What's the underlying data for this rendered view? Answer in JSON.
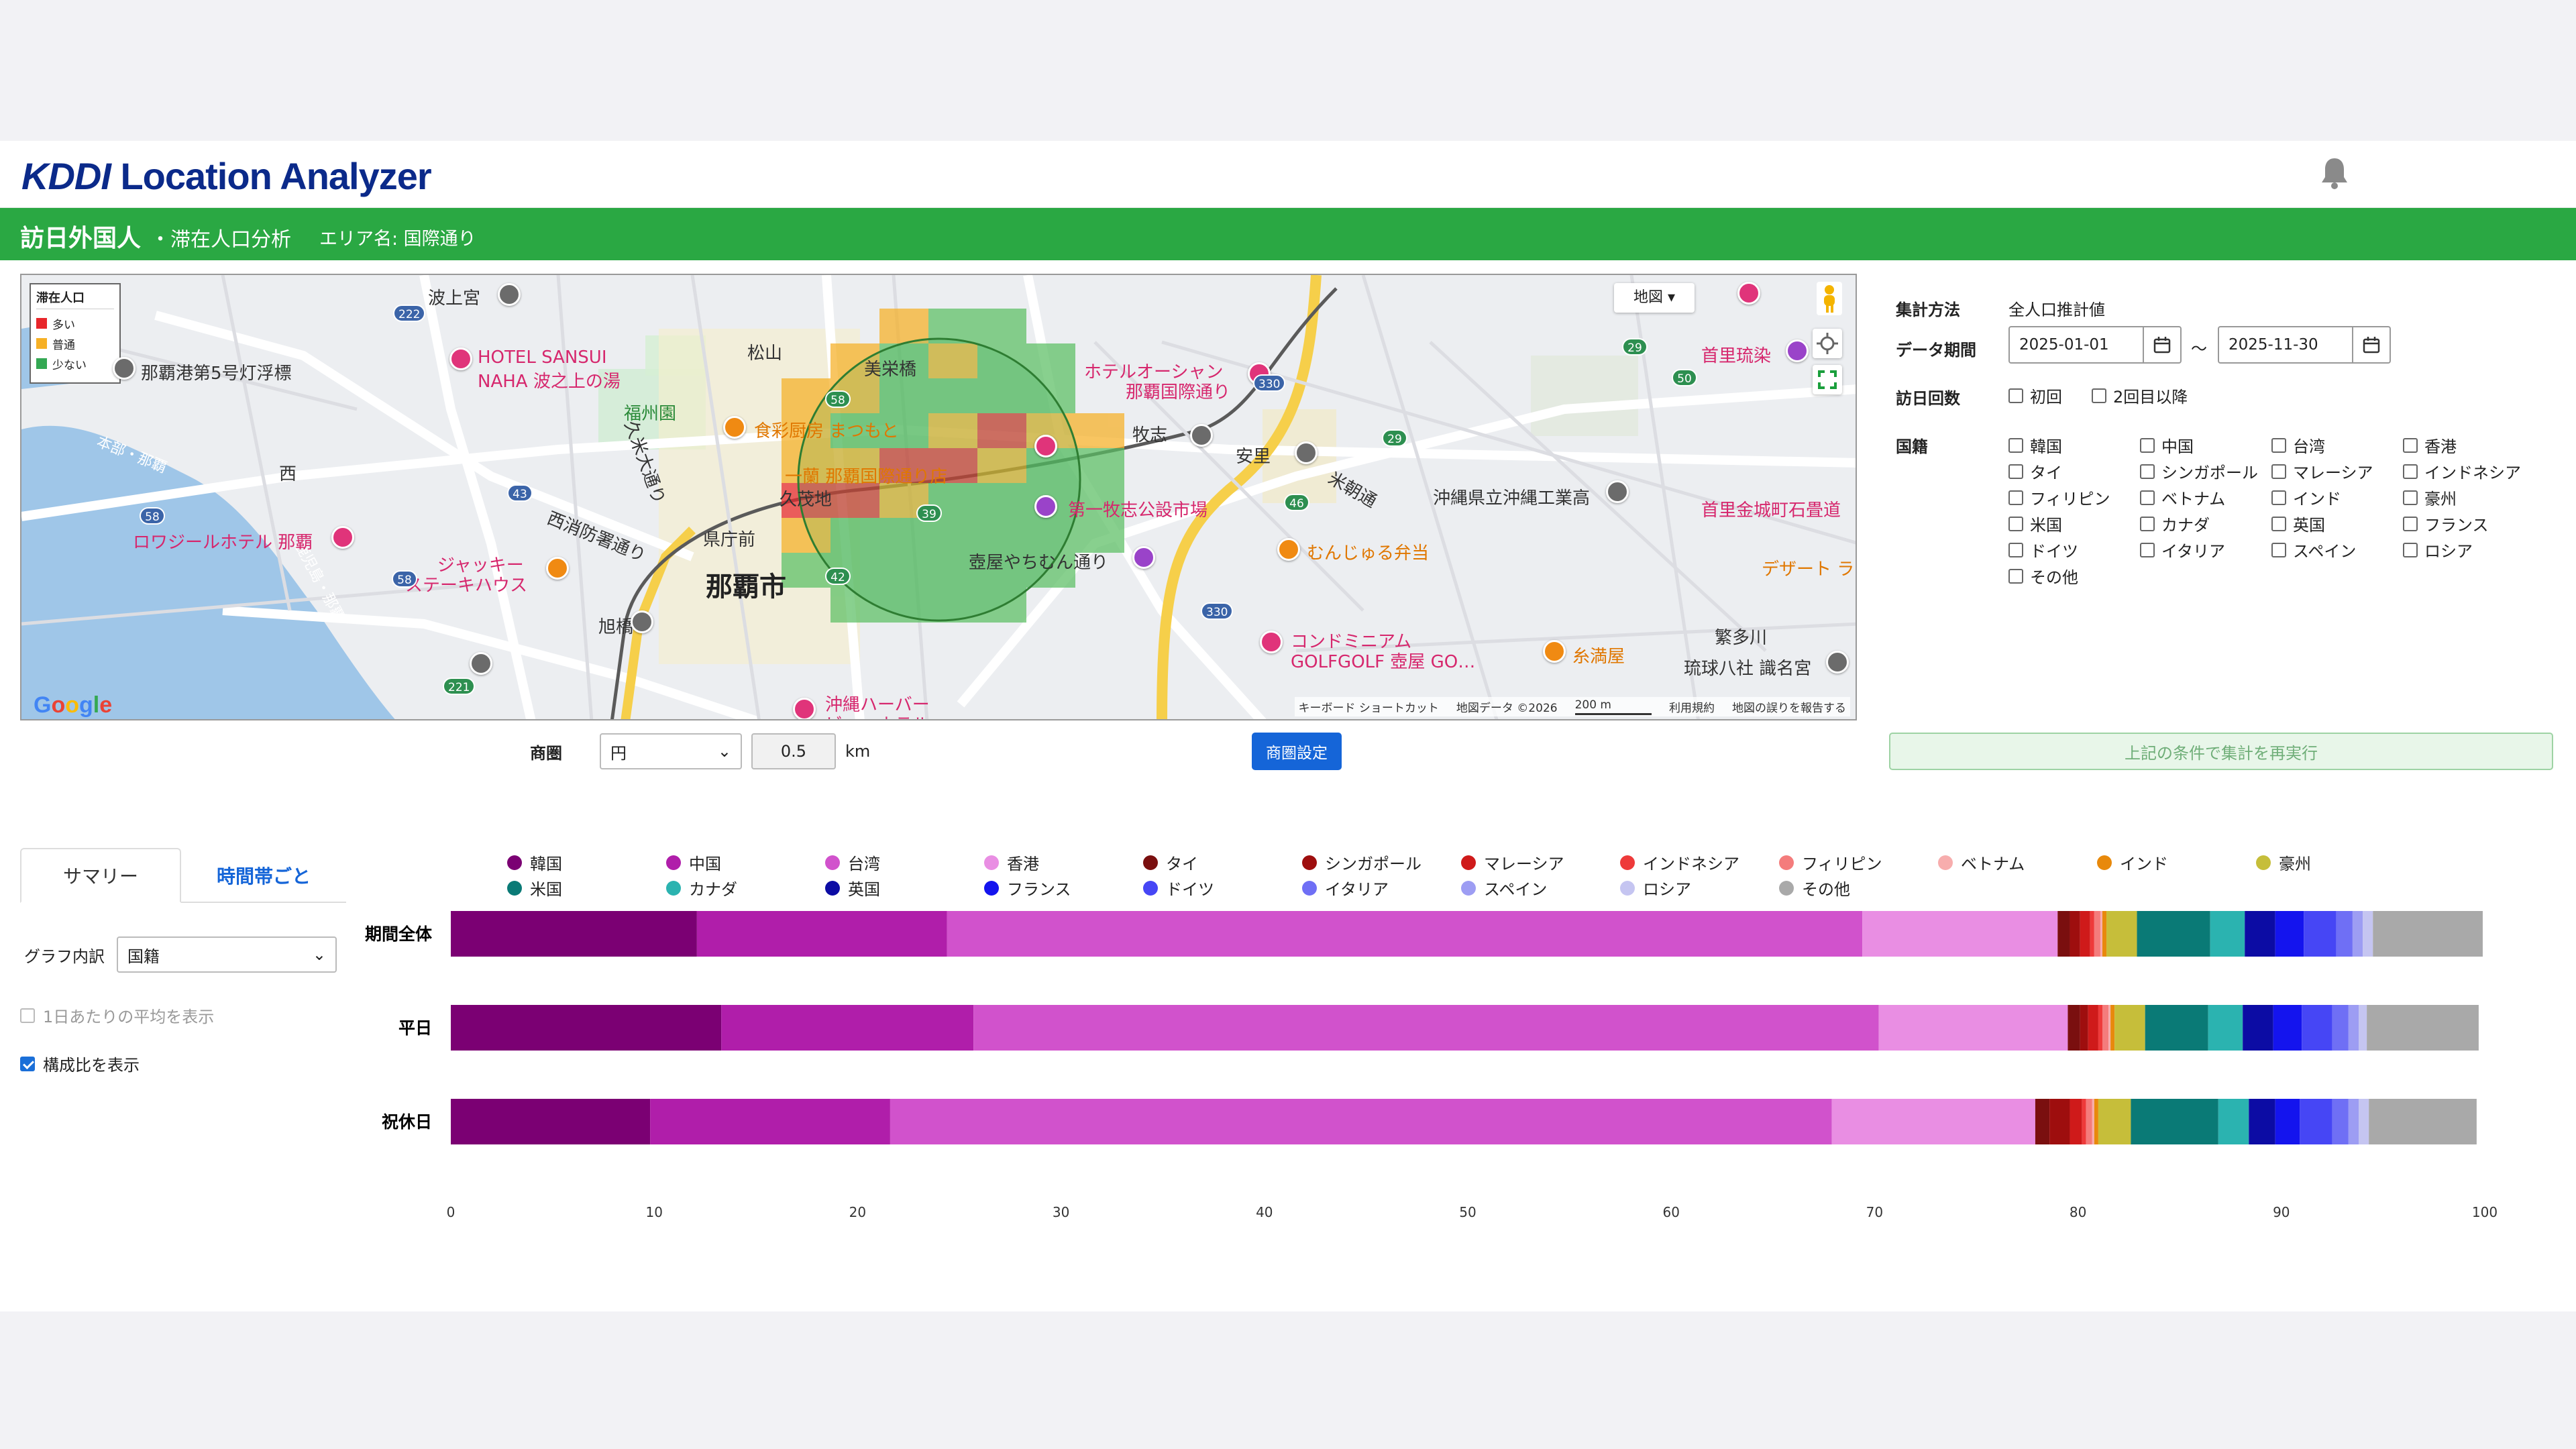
{
  "header": {
    "logo_kddi": "KDDI",
    "logo_rest": " Location Analyzer"
  },
  "titlebar": {
    "title": "訪日外国人",
    "subtitle": "・滞在人口分析",
    "area_label": "エリア名: 国際通り"
  },
  "map": {
    "legend": {
      "title": "滞在人口",
      "items": [
        {
          "label": "多い",
          "color": "#e8262b"
        },
        {
          "label": "普通",
          "color": "#f6b025"
        },
        {
          "label": "少ない",
          "color": "#34a853"
        }
      ]
    },
    "map_type": "地図",
    "labels": {
      "naminoue": "波上宮",
      "hotel_sansui_1": "HOTEL SANSUI",
      "hotel_sansui_2": "NAHA 波之上の湯",
      "lighthouse": "那覇港第5号灯浮標",
      "fukushuen": "福州園",
      "matsuyama": "松山",
      "bijobashi": "美栄橋",
      "restaurant": "食彩厨房 まつもと",
      "ichiran": "一蘭 那覇国際通り店",
      "kubochi": "久茂地",
      "hotel_ocean_1": "ホテルオーシャン",
      "hotel_ocean_2": "那覇国際通り",
      "makishi": "牧志",
      "asato": "安里",
      "daiichi_makishi": "第一牧志公設市場",
      "tsuboya": "壺屋やちむん通り",
      "kumoji": "県庁前",
      "naha_city": "那覇市",
      "nishi": "西",
      "route_hongu": "本部・那覇",
      "route_kagoshima": "鹿児島・那覇",
      "royal_hotel": "ロワジールホテル 那覇",
      "jackey_1": "ジャッキー",
      "jackey_2": "ステーキハウス",
      "nishi_fire": "西消防署通り",
      "kume": "久米大通り",
      "asahibashi": "旭橋",
      "okinawa_hotel_1": "沖縄ハーバー",
      "okinawa_hotel_2": "ビューホテル",
      "munjuru": "むんじゅる弁当",
      "kogyo": "沖縄県立沖縄工業高",
      "shurijo": "首里琉染",
      "ishidatami": "首里金城町石畳道",
      "condo_1": "コンドミニアム",
      "condo_2": "GOLFGOLF 壺屋 GO…",
      "itomanya": "糸満屋",
      "shigejo": "繁多川",
      "ryukyu_hachi": "琉球八社 識名宮",
      "yogimachi": "米朝通",
      "design": "デザート ラ",
      "shimizu": "牧志",
      "route_330": "330",
      "route_58": "58",
      "route_42": "42",
      "route_43": "43",
      "route_29": "29",
      "route_50": "50",
      "route_46": "46",
      "route_222": "222",
      "route_39": "39",
      "route_221": "221"
    },
    "google": "Google",
    "attribution": [
      "キーボード ショートカット",
      "地図データ ©2026",
      "200 m",
      "利用規約",
      "地図の誤りを報告する"
    ]
  },
  "area_control": {
    "label": "商圏",
    "shape": "円",
    "radius": "0.5",
    "unit": "km",
    "set_button": "商圏設定"
  },
  "settings": {
    "method_label": "集計方法",
    "method_value": "全人口推計値",
    "period_label": "データ期間",
    "start": "2025-01-01",
    "sep": "〜",
    "end": "2025-11-30",
    "visits_label": "訪日回数",
    "visits": [
      {
        "label": "初回",
        "checked": false
      },
      {
        "label": "2回目以降",
        "checked": false
      }
    ],
    "nation_label": "国籍",
    "nations": [
      {
        "label": "韓国"
      },
      {
        "label": "中国"
      },
      {
        "label": "台湾"
      },
      {
        "label": "香港"
      },
      {
        "label": "タイ"
      },
      {
        "label": "シンガポール"
      },
      {
        "label": "マレーシア"
      },
      {
        "label": "インドネシア"
      },
      {
        "label": "フィリピン"
      },
      {
        "label": "ベトナム"
      },
      {
        "label": "インド"
      },
      {
        "label": "豪州"
      },
      {
        "label": "米国"
      },
      {
        "label": "カナダ"
      },
      {
        "label": "英国"
      },
      {
        "label": "フランス"
      },
      {
        "label": "ドイツ"
      },
      {
        "label": "イタリア"
      },
      {
        "label": "スペイン"
      },
      {
        "label": "ロシア"
      },
      {
        "label": "その他"
      }
    ],
    "rerun_button": "上記の条件で集計を再実行"
  },
  "tabs": [
    {
      "label": "サマリー",
      "active": true
    },
    {
      "label": "時間帯ごと",
      "active": false
    }
  ],
  "left_controls": {
    "breakdown_label": "グラフ内訳",
    "breakdown_value": "国籍",
    "daily_avg": "1日あたりの平均を表示",
    "daily_avg_checked": false,
    "ratio": "構成比を表示",
    "ratio_checked": true
  },
  "chart_data": {
    "type": "bar",
    "orientation": "horizontal",
    "stacked": true,
    "categories": [
      "期間全体",
      "平日",
      "祝休日"
    ],
    "xlim": [
      0,
      100
    ],
    "xticks": [
      0,
      10,
      20,
      30,
      40,
      50,
      60,
      70,
      80,
      90,
      100
    ],
    "legend_position": "top",
    "series": [
      {
        "name": "韓国",
        "color": "#7b0073",
        "values": [
          12.1,
          13.3,
          9.8
        ]
      },
      {
        "name": "中国",
        "color": "#b01eaa",
        "values": [
          12.3,
          12.4,
          11.8
        ]
      },
      {
        "name": "台湾",
        "color": "#d152cc",
        "values": [
          45.0,
          44.5,
          46.3
        ]
      },
      {
        "name": "香港",
        "color": "#e98ee3",
        "values": [
          9.6,
          9.3,
          10.0
        ]
      },
      {
        "name": "タイ",
        "color": "#7a0f0f",
        "values": [
          0.6,
          0.6,
          0.7
        ]
      },
      {
        "name": "シンガポール",
        "color": "#9e0e0e",
        "values": [
          0.5,
          0.4,
          1.0
        ]
      },
      {
        "name": "マレーシア",
        "color": "#cf1a1a",
        "values": [
          0.5,
          0.5,
          0.6
        ]
      },
      {
        "name": "インドネシア",
        "color": "#ee3a3a",
        "values": [
          0.2,
          0.2,
          0.2
        ]
      },
      {
        "name": "フィリピン",
        "color": "#f47c7c",
        "values": [
          0.3,
          0.3,
          0.3
        ]
      },
      {
        "name": "ベトナム",
        "color": "#f7adad",
        "values": [
          0.1,
          0.1,
          0.1
        ]
      },
      {
        "name": "インド",
        "color": "#e8890c",
        "values": [
          0.2,
          0.2,
          0.2
        ]
      },
      {
        "name": "豪州",
        "color": "#c6be3a",
        "values": [
          1.5,
          1.5,
          1.6
        ]
      },
      {
        "name": "米国",
        "color": "#0a7a76",
        "values": [
          3.6,
          3.1,
          4.3
        ]
      },
      {
        "name": "カナダ",
        "color": "#2bb3b0",
        "values": [
          1.7,
          1.7,
          1.5
        ]
      },
      {
        "name": "英国",
        "color": "#0c0ca4",
        "values": [
          1.5,
          1.5,
          1.3
        ]
      },
      {
        "name": "フランス",
        "color": "#1414ee",
        "values": [
          1.4,
          1.4,
          1.2
        ]
      },
      {
        "name": "ドイツ",
        "color": "#4646f5",
        "values": [
          1.6,
          1.5,
          1.6
        ]
      },
      {
        "name": "イタリア",
        "color": "#6f6ff5",
        "values": [
          0.8,
          0.8,
          0.8
        ]
      },
      {
        "name": "スペイン",
        "color": "#9d9df3",
        "values": [
          0.5,
          0.5,
          0.5
        ]
      },
      {
        "name": "ロシア",
        "color": "#c5c5f1",
        "values": [
          0.5,
          0.4,
          0.5
        ]
      },
      {
        "name": "その他",
        "color": "#a9a9a9",
        "values": [
          5.4,
          5.5,
          5.3
        ]
      }
    ]
  }
}
